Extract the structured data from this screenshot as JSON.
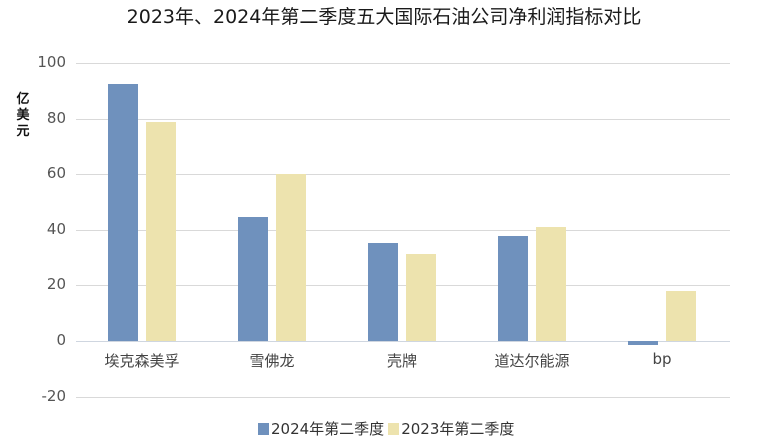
{
  "title": "2023年、2024年第二季度五大国际石油公司净利润指标对比",
  "colors": {
    "series_2024": "#6f91bd",
    "series_2023": "#ede3ae"
  },
  "chart_data": {
    "type": "bar",
    "title": "2023年、2024年第二季度五大国际石油公司净利润指标对比",
    "xlabel": "",
    "ylabel": "亿美元",
    "ylim": [
      -20,
      100
    ],
    "yticks": [
      100,
      80,
      60,
      40,
      20,
      0,
      -20
    ],
    "grid": true,
    "legend_position": "bottom",
    "categories": [
      "埃克森美孚",
      "雪佛龙",
      "壳牌",
      "道达尔能源",
      "bp"
    ],
    "series": [
      {
        "name": "2024年第二季度",
        "color": "#6f91bd",
        "values": [
          92.4,
          44.6,
          35.3,
          37.7,
          -1.6
        ]
      },
      {
        "name": "2023年第二季度",
        "color": "#ede3ae",
        "values": [
          78.8,
          60.0,
          31.2,
          40.9,
          18.0
        ]
      }
    ]
  }
}
